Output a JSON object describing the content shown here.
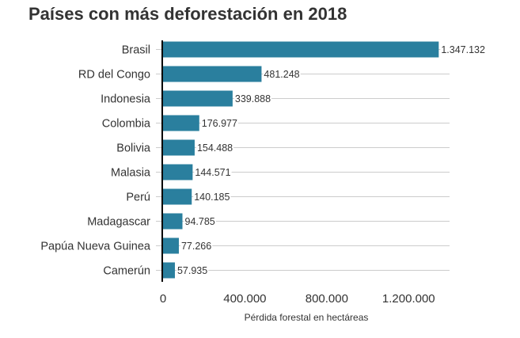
{
  "chart_data": {
    "type": "bar",
    "orientation": "horizontal",
    "title": "Países con más deforestación en 2018",
    "xlabel": "Pérdida forestal en hectáreas",
    "ylabel": "",
    "categories": [
      "Brasil",
      "RD del Congo",
      "Indonesia",
      "Colombia",
      "Bolivia",
      "Malasia",
      "Perú",
      "Madagascar",
      "Papúa Nueva Guinea",
      "Camerún"
    ],
    "values": [
      1347132,
      481248,
      339888,
      176977,
      154488,
      144571,
      140185,
      94785,
      77266,
      57935
    ],
    "value_labels": [
      "1.347.132",
      "481.248",
      "339.888",
      "176.977",
      "154.488",
      "144.571",
      "140.185",
      "94.785",
      "77.266",
      "57.935"
    ],
    "xlim": [
      0,
      1400000
    ],
    "x_ticks": [
      0,
      400000,
      800000,
      1200000
    ],
    "x_tick_labels": [
      "0",
      "400.000",
      "800.000",
      "1.200.000"
    ],
    "grid": true,
    "legend": "none",
    "colors": {
      "bar": "#2a7f9e",
      "text": "#333333",
      "grid": "#cccccc",
      "axis": "#000000"
    }
  }
}
